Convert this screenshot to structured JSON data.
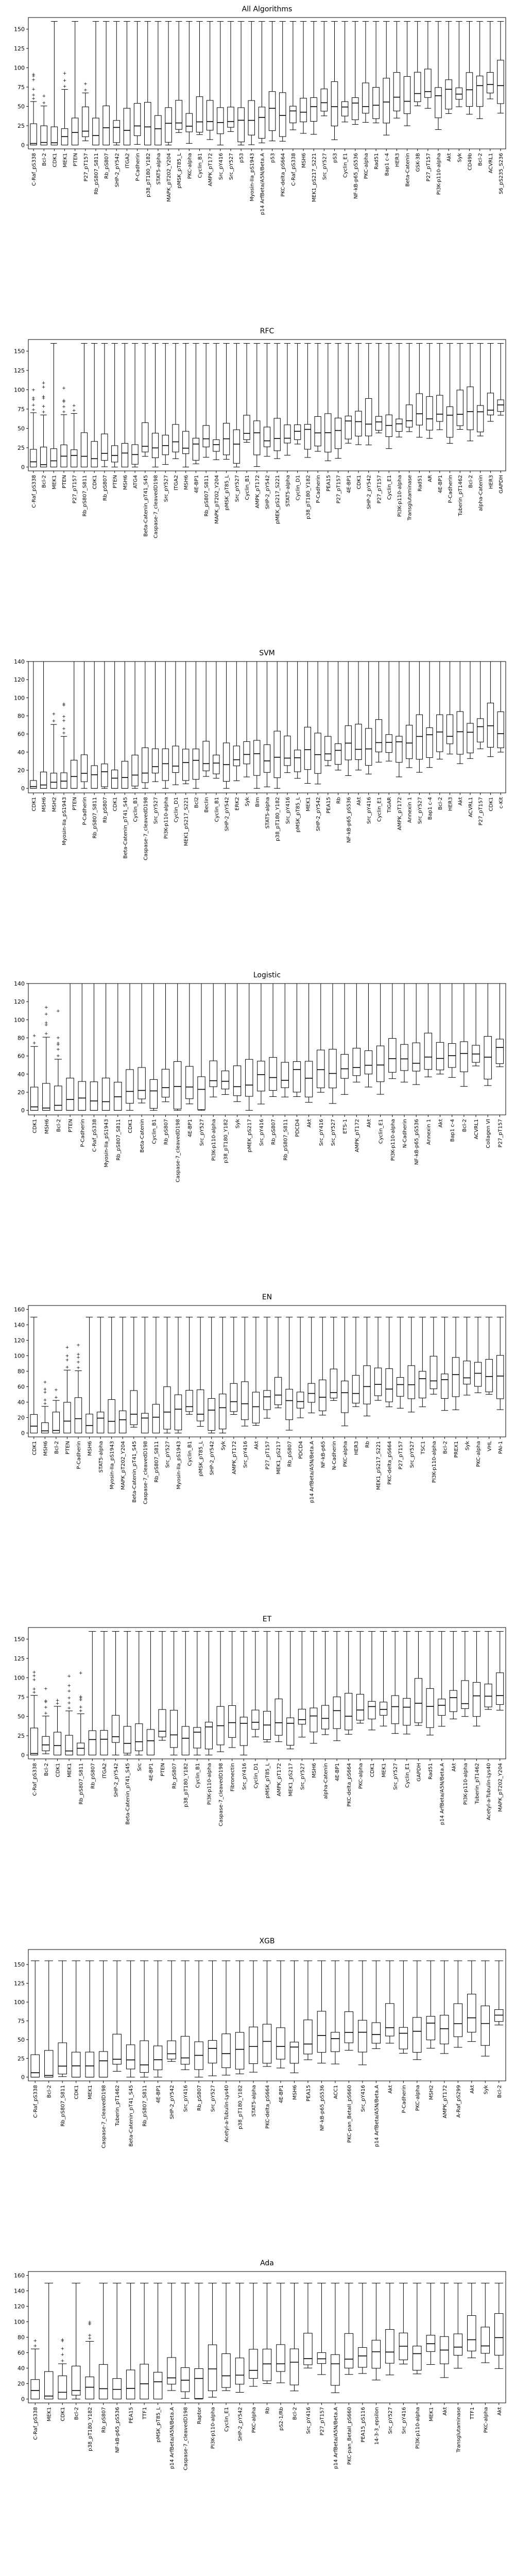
{
  "chart_data": [
    {
      "type": "box",
      "title": "All Algorithms",
      "ylim": [
        -5,
        165
      ],
      "yticks": [
        0,
        25,
        50,
        75,
        100,
        125,
        150
      ],
      "whisker_cap": 160,
      "categories": [
        "C-Raf_pS338",
        "Bcl-2",
        "CDK1",
        "MEK1",
        "PTEN",
        "P27_pT157",
        "Rb_pS807_S811",
        "Rb_pS807",
        "SHP-2_pY542",
        "ITGA2",
        "P-Cadherin",
        "p38_pT180_Y182",
        "STAT5-alpha",
        "MAPK_pT202_Y204",
        "pMSK_pT85_L",
        "PKC-alpha",
        "Cyclin_B1",
        "AMPK_pT172",
        "Src_pY416",
        "Src_pY527",
        "p53",
        "Myosin-IIa_pS1943",
        "p14 ArfBeta/A5N/Beta.A",
        "p53",
        "PKC-delta_pS664",
        "C-Raf_pS338",
        "MSH6",
        "MEK1_pS217_S221",
        "Src_pY527",
        "pS3",
        "Cyclin_E1",
        "NF-kB-p65_pS536",
        "PKC-alpha",
        "Rad51",
        "Bap1 c-4",
        "HER3",
        "Beta-Catenin",
        "GSK-3B",
        "P27_pT157",
        "PI3K-p110-alpha",
        "Akt",
        "Syk",
        "CD49b",
        "Bcl-2",
        "ACVRL1",
        "S6_pS235_S236"
      ]
    },
    {
      "type": "box",
      "title": "RFC",
      "ylim": [
        -5,
        165
      ],
      "yticks": [
        0,
        25,
        50,
        75,
        100,
        125,
        150
      ],
      "whisker_cap": 160,
      "categories": [
        "C-Raf_pS338",
        "Bcl-2",
        "MEK1",
        "PTEN",
        "P27_pT157",
        "Rb_pS807_S811",
        "CDK1",
        "Rb_pS807",
        "PTEN",
        "MSH6",
        "ATG4",
        "Beta-Catenin_pT41_S45",
        "Caspase-7_cleavedD198",
        "Src_pY527",
        "ITGA2",
        "MSH6",
        "4E-BP1",
        "Rb_pS807_S811",
        "MAPK_pT202_Y204",
        "pMSK_pT85_L",
        "Src_pY527",
        "Cyclin_B1",
        "AMPK_pT172",
        "SHP-2_pY542",
        "pMEK_pS217_S221",
        "STAT5-alpha",
        "Cyclin_D1",
        "p38_pT180_Y182",
        "P-Cadherin",
        "PEA15",
        "P27_pT157",
        "4E-BP1",
        "CDK1",
        "SHP-2_pY542",
        "P27_pT157",
        "Cyclin_E1",
        "PI3K-p110-alpha",
        "Transglutaminase",
        "Rad51",
        "AR",
        "4E-BP1",
        "P-Cadherin",
        "Tuberin_pT1462",
        "Bcl-2",
        "alpha-Catenin",
        "HER3",
        "GAPDH"
      ]
    },
    {
      "type": "box",
      "title": "SVM",
      "ylim": [
        -5,
        140
      ],
      "yticks": [
        0,
        20,
        40,
        60,
        80,
        100,
        120,
        140
      ],
      "whisker_cap": 140,
      "categories": [
        "CDK1",
        "MSH6",
        "MSH2",
        "Myosin-IIa_pS1943",
        "PTEN",
        "P-Cadherin",
        "Rb_pS807_S811",
        "Rb_pS807",
        "CDK1",
        "Beta-Catenin_pT41_S45",
        "Cyclin_B1",
        "Caspase-7_cleavedD198",
        "Src_pY527",
        "PI3K-p110-alpha",
        "Cyclin_D1",
        "MEK1_pS217_S221",
        "Bcl2",
        "Beclin",
        "Cyclin_B1",
        "SHP-2_pY542",
        "ERK2",
        "Syk",
        "Bim",
        "STAT5-alpha",
        "p38_pT180_Y182",
        "Src_pY416",
        "pMSK_pT85_L",
        "MEK1",
        "SHP-2_pY542",
        "PEA15",
        "Rb",
        "NF-kB-p65_pS536",
        "Akt",
        "Src_pY416",
        "Cyclin_E1",
        "TIGAR",
        "AMPK_pT172",
        "Annexin 1",
        "Src_pY527",
        "Bap1 c-4",
        "Bcl-2",
        "HER3",
        "Akt",
        "ACVRL1",
        "P27_pT157",
        "CDK1",
        "c-Kit"
      ]
    },
    {
      "type": "box",
      "title": "Logistic",
      "ylim": [
        -5,
        140
      ],
      "yticks": [
        0,
        20,
        40,
        60,
        80,
        100,
        120,
        140
      ],
      "whisker_cap": 140,
      "categories": [
        "CDK1",
        "MSH6",
        "Bcl-2",
        "PTEN",
        "P-Cadherin",
        "C-Raf_pS338",
        "Myosin-IIa_pS1943",
        "Rb_pS807_S811",
        "CDK1",
        "Beta-Catenin",
        "Cyclin_B1",
        "Rb_pS807",
        "Caspase-7_cleavedD198",
        "4E-BP1",
        "Src_pY527",
        "PI3K-p110-alpha",
        "p38_pT180_Y182",
        "Syk",
        "pMEK_pS217",
        "Src_pY416",
        "Rb_pS807",
        "Rb_pS807_S811",
        "PDCD4",
        "Akt",
        "Src_pY416",
        "Src_pY527",
        "ETS-1",
        "AMPK_pT172",
        "Akt",
        "Cyclin_E1",
        "PI3K-p110-alpha",
        "N-Cadherin",
        "NF-kB-p65_pS536",
        "Annexin 1",
        "Akt",
        "Bap1 c-4",
        "Bcl-2",
        "ACVRL1",
        "Collagen VI",
        "P27_pT157"
      ]
    },
    {
      "type": "box",
      "title": "EN",
      "ylim": [
        -5,
        165
      ],
      "yticks": [
        0,
        20,
        40,
        60,
        80,
        100,
        120,
        140,
        160
      ],
      "whisker_cap": 150,
      "categories": [
        "CDK1",
        "MSH6",
        "Bcl-2",
        "PTEN",
        "P-Cadherin",
        "MSH6",
        "STAT5-alpha",
        "Myosin-IIa_pS1943",
        "MAPK_pT202_Y204",
        "Beta-Catenin_pT41_S45",
        "Caspase-7_cleavedD198",
        "Rb_pS807_S811",
        "Src_pY527",
        "Myosin-IIa_pS1943",
        "Cyclin_B1",
        "pMSK_pT85_L",
        "SHP-2_pY542",
        "Syk",
        "AMPK_pT172",
        "Src_pY416",
        "Akt",
        "P27_pT157",
        "MEK1_pS217",
        "Rb_pS807",
        "PDCD4",
        "p14 ArfBeta/A5N/Beta.A",
        "NF-kB-p65",
        "N-Cadherin",
        "PKC-alpha",
        "HER3",
        "Rb",
        "MEK1_pS217_S221",
        "PKC-delta_pS664",
        "P27_pT157",
        "Src_pY527",
        "TSC1",
        "PI3K-p110-alpha",
        "Bcl-2",
        "PREX1",
        "Syk",
        "PKC-alpha",
        "VHL",
        "PAI-1"
      ]
    },
    {
      "type": "box",
      "title": "ET",
      "ylim": [
        -5,
        165
      ],
      "yticks": [
        0,
        25,
        50,
        75,
        100,
        125,
        150
      ],
      "whisker_cap": 160,
      "categories": [
        "C-Raf_pS338",
        "Bcl-2",
        "CDK1",
        "MEK1",
        "Rb_pS807_S811",
        "Rb_pS807",
        "ITGA2",
        "SHP-2_pY542",
        "Beta-Catenin_pT41_S45",
        "Src",
        "4E-BP1",
        "PTEN",
        "Rb_pS807",
        "p38_pT180_Y182",
        "Cyclin_B1",
        "PI3K-p110-alpha",
        "Caspase-7_cleavedD198",
        "Fibronectin",
        "Src_pY416",
        "Cyclin_D1",
        "pMSK_pT85_L",
        "AMPK_pT172",
        "MEK1_pS217",
        "Src_pY527",
        "MSH6",
        "alpha-Catenin",
        "4E-BP1",
        "PKC-delta_pS664",
        "PKC-alpha",
        "CDK1",
        "MEK1",
        "Src_pY527",
        "Cyclin_E1",
        "GAPDH",
        "Rad51",
        "p14 ArfBeta/A5N/Beta.A",
        "Akt",
        "PI3K-p110-alpha",
        "Tuberin_pT1462",
        "Acetyl-a-Tubulin-Lys40",
        "MAPK_pT202_Y204"
      ]
    },
    {
      "type": "box",
      "title": "XGB",
      "ylim": [
        -5,
        170
      ],
      "yticks": [
        0,
        25,
        50,
        75,
        100,
        125,
        150
      ],
      "whisker_cap": 155,
      "categories": [
        "C-Raf_pS338",
        "Bcl-2",
        "Rb_pS807_S811",
        "CDK1",
        "MEK1",
        "Caspase-7_cleavedD198",
        "Tuberin_pT1462",
        "Beta-Catenin_pT41_S45",
        "Rb_pS807_S811",
        "4E-BP1",
        "SHP-2_pY542",
        "Src_pY416",
        "Rb_pS807",
        "Src_pY527",
        "Acetyl-a-Tubulin-Lys40",
        "p38_pT180_Y182",
        "STAT5-alpha",
        "PKC-delta_pS664",
        "4E-BP1",
        "MSH6",
        "PEA15",
        "NF-kB-p65_pS536",
        "ACC1",
        "PKC-pan_BetaII_pS660",
        "Src_pY416",
        "p14 ArfBeta/A5N/Beta.A",
        "Akt",
        "P-Cadherin",
        "PKC-alpha",
        "MSH2",
        "AMPK_pT172",
        "A-Raf_pS299",
        "Akt",
        "Syk",
        "Bcl-2"
      ]
    },
    {
      "type": "box",
      "title": "Ada",
      "ylim": [
        -5,
        165
      ],
      "yticks": [
        0,
        20,
        40,
        60,
        80,
        100,
        120,
        140,
        160
      ],
      "whisker_cap": 150,
      "categories": [
        "C-Raf_pS338",
        "MEK1",
        "CDK1",
        "Bcl-2",
        "p38_pT180_Y182",
        "Rb_pS807",
        "NF-kB-p65_pS536",
        "PEA15",
        "TTF1",
        "pMSK_pT85_L",
        "p14 ArfBeta/A5N/Beta.A",
        "Caspase-7_cleavedD198",
        "Raptor",
        "PI3K-p110-alpha",
        "Cyclin_E1",
        "SHP-2_pY542",
        "PKC-alpha",
        "Rb",
        "pS2-1/Rb",
        "Bcl-2",
        "Src_pY416",
        "P27_pT157",
        "p14 ArfBeta/A5N/Beta.A",
        "PKC-pan_BetaII_pS660",
        "PEA15_pS116",
        "14-3-3_epsilon",
        "Src_pY527",
        "Src_pY416",
        "PI3K-p110-alpha",
        "MEK1",
        "Akt",
        "Transglutaminase",
        "TTF1",
        "PKC-alpha",
        "Akt"
      ]
    }
  ]
}
